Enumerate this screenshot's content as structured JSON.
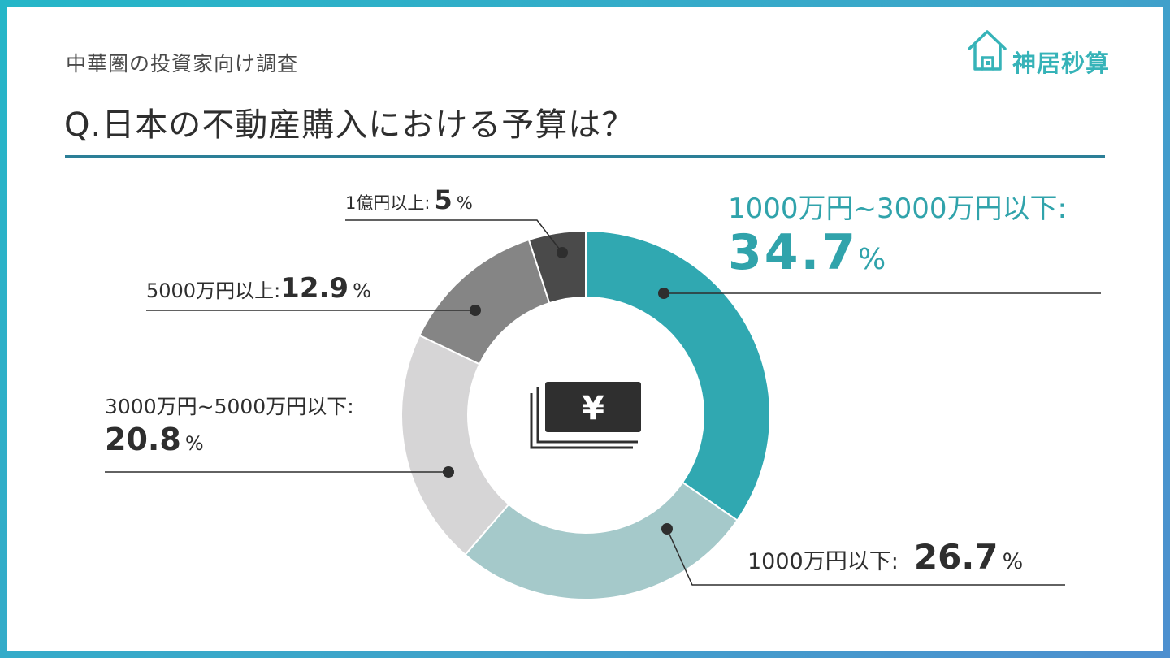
{
  "header": {
    "subtitle": "中華圏の投資家向け調査",
    "title": "Q.日本の不動産購入における予算は？"
  },
  "brand": {
    "logo_text": "神居秒算",
    "accent_color": "#36b3b8",
    "rule_color": "#2c7f97"
  },
  "chart_data": {
    "type": "pie",
    "title": "Q.日本の不動産購入における予算は？",
    "donut": true,
    "center_icon": "yen-banknote-icon",
    "unit": "%",
    "slices": [
      {
        "label": "1000万円~3000万円以下:",
        "value": 34.7,
        "display": "34.7",
        "color": "#30a8b1"
      },
      {
        "label": "1000万円以下:",
        "value": 26.7,
        "display": "26.7",
        "color": "#a5c9ca"
      },
      {
        "label": "3000万円~5000万円以下:",
        "value": 20.8,
        "display": "20.8",
        "color": "#d6d5d6"
      },
      {
        "label": "5000万円以上:",
        "value": 12.9,
        "display": "12.9",
        "color": "#858585"
      },
      {
        "label": "1億円以上:",
        "value": 5,
        "display": "5",
        "color": "#4a4a4a"
      }
    ]
  }
}
